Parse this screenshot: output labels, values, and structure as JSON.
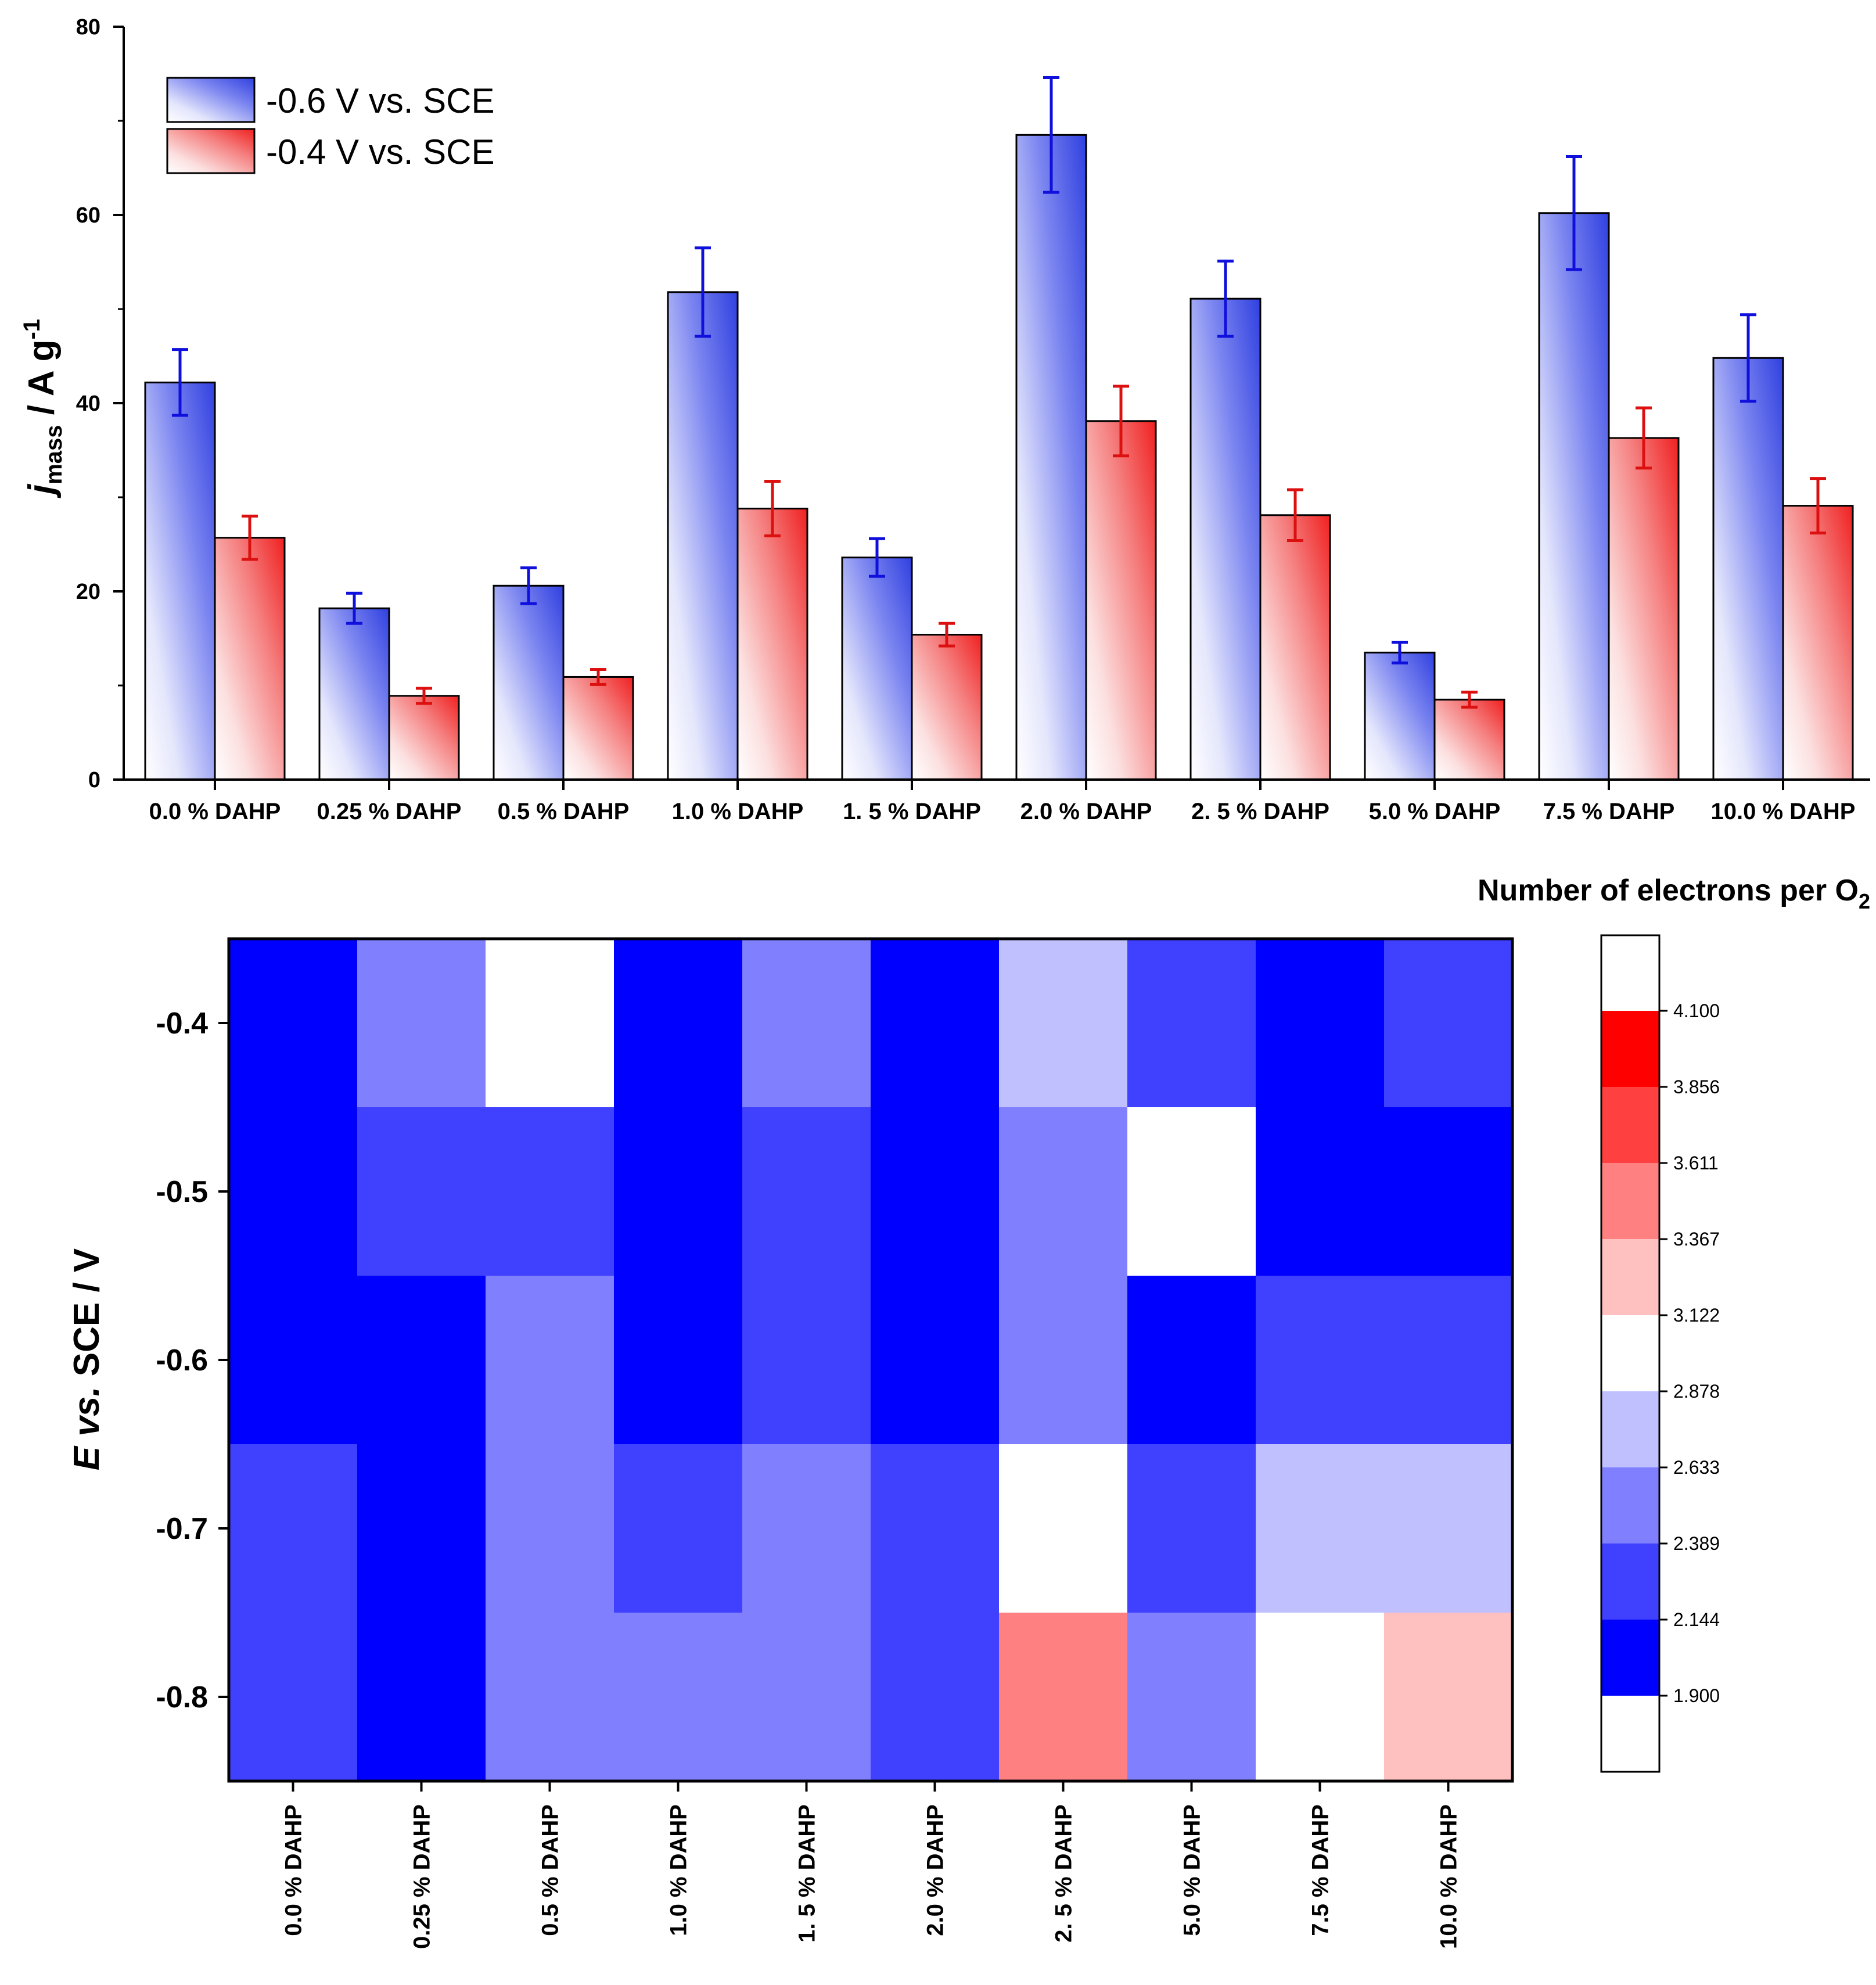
{
  "chart_data": [
    {
      "type": "bar",
      "categories": [
        "0.0 % DAHP",
        "0.25 % DAHP",
        "0.5 % DAHP",
        "1.0 % DAHP",
        "1. 5 % DAHP",
        "2.0 % DAHP",
        "2. 5 % DAHP",
        "5.0 % DAHP",
        "7.5 % DAHP",
        "10.0 % DAHP"
      ],
      "series": [
        {
          "name": "-0.6 V vs. SCE",
          "color": "#1010dd",
          "values": [
            42.2,
            18.2,
            20.6,
            51.8,
            23.6,
            68.5,
            51.1,
            13.5,
            60.2,
            44.8
          ],
          "errors": [
            3.5,
            1.6,
            1.9,
            4.7,
            2.0,
            6.1,
            4.0,
            1.1,
            6.0,
            4.6
          ]
        },
        {
          "name": "-0.4 V vs. SCE",
          "color": "#dd1010",
          "values": [
            25.7,
            8.9,
            10.9,
            28.8,
            15.4,
            38.1,
            28.1,
            8.5,
            36.3,
            29.1
          ],
          "errors": [
            2.3,
            0.8,
            0.8,
            2.9,
            1.2,
            3.7,
            2.7,
            0.8,
            3.2,
            2.9
          ]
        }
      ],
      "ylabel_main": "j",
      "ylabel_sub": "mass",
      "ylabel_unit": " / A g",
      "ylabel_sup": "-1",
      "ylim": [
        0,
        80
      ],
      "yticks": [
        0,
        20,
        40,
        60,
        80
      ],
      "legend_position": "top-left"
    },
    {
      "type": "heatmap",
      "x_categories": [
        "0.0 % DAHP",
        "0.25 % DAHP",
        "0.5 % DAHP",
        "1.0 % DAHP",
        "1. 5 % DAHP",
        "2.0 % DAHP",
        "2. 5 % DAHP",
        "5.0 % DAHP",
        "7.5 % DAHP",
        "10.0 % DAHP"
      ],
      "y_values": [
        -0.4,
        -0.5,
        -0.6,
        -0.7,
        -0.8
      ],
      "y_tick_labels": [
        "-0.4",
        "-0.5",
        "-0.6",
        "-0.7",
        "-0.8"
      ],
      "ylabel_E": "E",
      "ylabel_vs": " vs.",
      "ylabel_rest": " SCE / V",
      "values": [
        [
          2.0,
          2.5,
          3.0,
          2.0,
          2.5,
          2.0,
          2.75,
          2.25,
          2.0,
          2.25
        ],
        [
          2.0,
          2.25,
          2.25,
          2.0,
          2.25,
          2.0,
          2.5,
          3.0,
          2.0,
          2.0
        ],
        [
          2.0,
          2.0,
          2.5,
          2.0,
          2.25,
          2.0,
          2.5,
          2.0,
          2.25,
          2.25
        ],
        [
          2.25,
          2.0,
          2.5,
          2.25,
          2.5,
          2.25,
          3.0,
          2.25,
          2.75,
          2.75
        ],
        [
          2.25,
          2.0,
          2.5,
          2.5,
          2.5,
          2.25,
          3.5,
          2.5,
          3.0,
          3.25
        ]
      ],
      "colorbar": {
        "title_main": "Number of electrons per O",
        "title_sub": "2",
        "levels": [
          "4.100",
          "3.856",
          "3.611",
          "3.367",
          "3.122",
          "2.878",
          "2.633",
          "2.389",
          "2.144",
          "1.900"
        ],
        "level_values": [
          1.9,
          2.144,
          2.389,
          2.633,
          2.878,
          3.122,
          3.367,
          3.611,
          3.856,
          4.1
        ],
        "colors_low_to_high": [
          "#ffffff",
          "#0000ff",
          "#4040ff",
          "#8080ff",
          "#c0c0ff",
          "#ffffff",
          "#ffc0c0",
          "#ff8080",
          "#ff4040",
          "#ff0000",
          "#ffffff"
        ]
      }
    }
  ]
}
